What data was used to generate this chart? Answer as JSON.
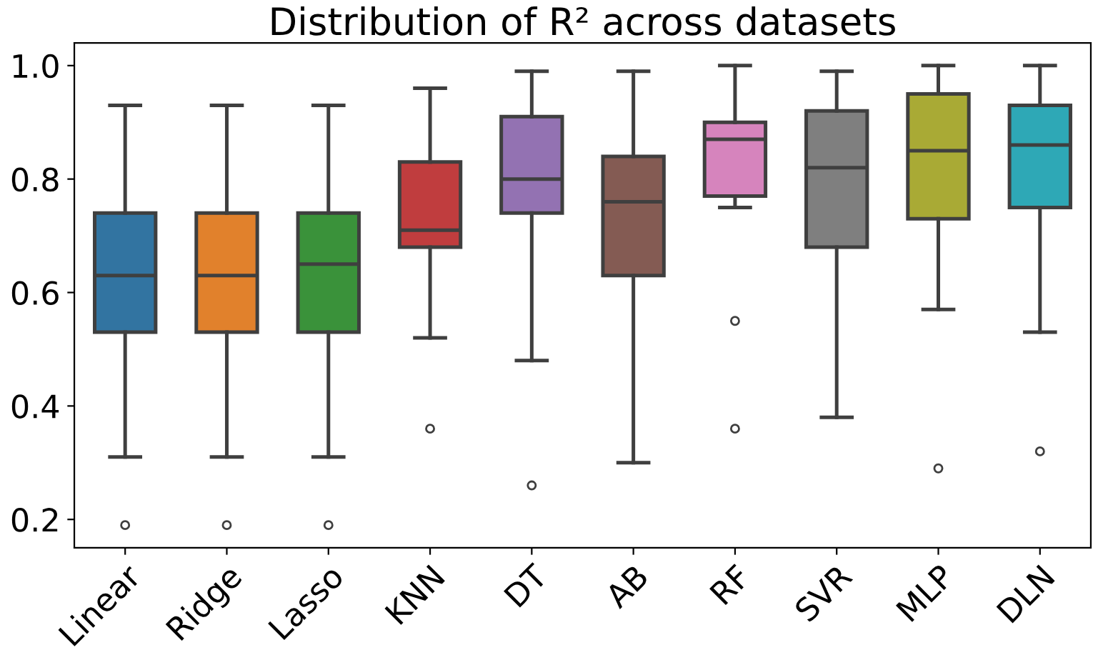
{
  "chart_data": {
    "type": "box",
    "title": "Distribution of R² across datasets",
    "categories": [
      "Linear",
      "Ridge",
      "Lasso",
      "KNN",
      "DT",
      "AB",
      "RF",
      "SVR",
      "MLP",
      "DLN"
    ],
    "colors": [
      "#3274a1",
      "#e1812c",
      "#3a923a",
      "#c03d3e",
      "#9372b2",
      "#845b53",
      "#d684bd",
      "#7f7f7f",
      "#a9aa35",
      "#2ea8b6"
    ],
    "boxes": [
      {
        "low": 0.31,
        "q1": 0.53,
        "median": 0.63,
        "q3": 0.74,
        "high": 0.93,
        "outliers": [
          0.19
        ]
      },
      {
        "low": 0.31,
        "q1": 0.53,
        "median": 0.63,
        "q3": 0.74,
        "high": 0.93,
        "outliers": [
          0.19
        ]
      },
      {
        "low": 0.31,
        "q1": 0.53,
        "median": 0.65,
        "q3": 0.74,
        "high": 0.93,
        "outliers": [
          0.19
        ]
      },
      {
        "low": 0.52,
        "q1": 0.68,
        "median": 0.71,
        "q3": 0.83,
        "high": 0.96,
        "outliers": [
          0.36
        ]
      },
      {
        "low": 0.48,
        "q1": 0.74,
        "median": 0.8,
        "q3": 0.91,
        "high": 0.99,
        "outliers": [
          0.26
        ]
      },
      {
        "low": 0.3,
        "q1": 0.63,
        "median": 0.76,
        "q3": 0.84,
        "high": 0.99
      },
      {
        "low": 0.75,
        "q1": 0.77,
        "median": 0.87,
        "q3": 0.9,
        "high": 1.0,
        "outliers": [
          0.55,
          0.36
        ]
      },
      {
        "low": 0.38,
        "q1": 0.68,
        "median": 0.82,
        "q3": 0.92,
        "high": 0.99
      },
      {
        "low": 0.57,
        "q1": 0.73,
        "median": 0.85,
        "q3": 0.95,
        "high": 1.0,
        "outliers": [
          0.29
        ]
      },
      {
        "low": 0.53,
        "q1": 0.75,
        "median": 0.86,
        "q3": 0.93,
        "high": 1.0,
        "outliers": [
          0.32
        ]
      }
    ],
    "ylim": [
      0.15,
      1.04
    ],
    "yticks": [
      0.2,
      0.4,
      0.6,
      0.8,
      {
        "value": 1.0,
        "label": "1.0"
      }
    ],
    "grid": false
  }
}
